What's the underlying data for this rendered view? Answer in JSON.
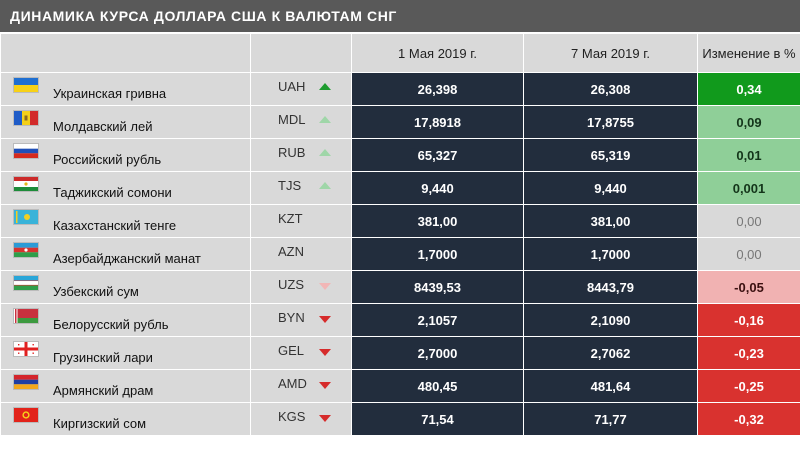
{
  "title": "ДИНАМИКА КУРСА ДОЛЛАРА США К ВАЛЮТАМ СНГ",
  "header": {
    "date1": "1 Мая 2019 г.",
    "date2": "7 Мая 2019 г.",
    "change": "Изменение в %"
  },
  "colors": {
    "header_bg": "#595959",
    "row_bg": "#d9d9d9",
    "rate_bg": "#222d3d",
    "up_strong": "#119a1c",
    "up": "#8fcf98",
    "down_light": "#f1b2b2",
    "down": "#d9322f"
  },
  "chart_data": {
    "type": "table",
    "title": "ДИНАМИКА КУРСА ДОЛЛАРА США К ВАЛЮТАМ СНГ",
    "columns": [
      "",
      "",
      "1 Мая 2019 г.",
      "7 Мая 2019 г.",
      "Изменение в %"
    ],
    "rows": [
      {
        "name": "Украинская гривна",
        "code": "UAH",
        "flag": "ua-flag",
        "trend": "up-dark",
        "rate1": "26,398",
        "rate2": "26,308",
        "change": "0,34",
        "change_value": 0.34,
        "style": "chg-up-strong"
      },
      {
        "name": "Молдавский лей",
        "code": "MDL",
        "flag": "md-flag",
        "trend": "up-light",
        "rate1": "17,8918",
        "rate2": "17,8755",
        "change": "0,09",
        "change_value": 0.09,
        "style": "chg-up"
      },
      {
        "name": "Российский рубль",
        "code": "RUB",
        "flag": "ru-flag",
        "trend": "up-light",
        "rate1": "65,327",
        "rate2": "65,319",
        "change": "0,01",
        "change_value": 0.01,
        "style": "chg-up"
      },
      {
        "name": "Таджикский сомони",
        "code": "TJS",
        "flag": "tj-flag",
        "trend": "up-light",
        "rate1": "9,440",
        "rate2": "9,440",
        "change": "0,001",
        "change_value": 0.001,
        "style": "chg-up"
      },
      {
        "name": "Казахстанский тенге",
        "code": "KZT",
        "flag": "kz-flag",
        "trend": "none",
        "rate1": "381,00",
        "rate2": "381,00",
        "change": "0,00",
        "change_value": 0.0,
        "style": "chg-neutral"
      },
      {
        "name": "Азербайджанский манат",
        "code": "AZN",
        "flag": "az-flag",
        "trend": "none",
        "rate1": "1,7000",
        "rate2": "1,7000",
        "change": "0,00",
        "change_value": 0.0,
        "style": "chg-neutral"
      },
      {
        "name": "Узбекский сум",
        "code": "UZS",
        "flag": "uz-flag",
        "trend": "down-light",
        "rate1": "8439,53",
        "rate2": "8443,79",
        "change": "-0,05",
        "change_value": -0.05,
        "style": "chg-down-light"
      },
      {
        "name": "Белорусский рубль",
        "code": "BYN",
        "flag": "by-flag",
        "trend": "down-dark",
        "rate1": "2,1057",
        "rate2": "2,1090",
        "change": "-0,16",
        "change_value": -0.16,
        "style": "chg-down"
      },
      {
        "name": "Грузинский лари",
        "code": "GEL",
        "flag": "ge-flag",
        "trend": "down-dark",
        "rate1": "2,7000",
        "rate2": "2,7062",
        "change": "-0,23",
        "change_value": -0.23,
        "style": "chg-down"
      },
      {
        "name": "Армянский драм",
        "code": "AMD",
        "flag": "am-flag",
        "trend": "down-dark",
        "rate1": "480,45",
        "rate2": "481,64",
        "change": "-0,25",
        "change_value": -0.25,
        "style": "chg-down"
      },
      {
        "name": "Киргизский сом",
        "code": "KGS",
        "flag": "kg-flag",
        "trend": "down-dark",
        "rate1": "71,54",
        "rate2": "71,77",
        "change": "-0,32",
        "change_value": -0.32,
        "style": "chg-down"
      }
    ]
  }
}
